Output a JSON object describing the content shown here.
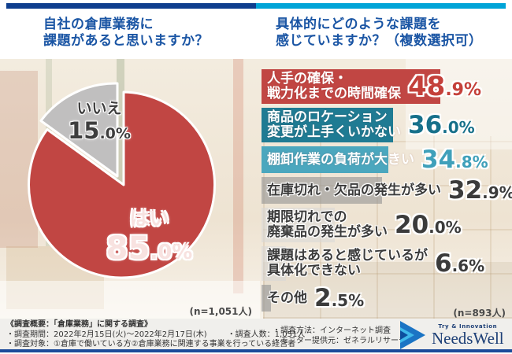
{
  "questions": {
    "left": [
      "自社の倉庫業務に",
      "課題があると思いますか？"
    ],
    "right": [
      "具体的にどのような課題を",
      "感じていますか？（複数選択可）"
    ]
  },
  "pie": {
    "slices": [
      {
        "label": "はい",
        "value": 85.0,
        "pct_int": "85",
        "pct_frac": ".0%",
        "color": "#c14643"
      },
      {
        "label": "いいえ",
        "value": 15.0,
        "pct_int": "15",
        "pct_frac": ".0%",
        "color": "#c0bfbf"
      }
    ],
    "n_label": "(n=1,051人)"
  },
  "bars": {
    "items": [
      {
        "label_lines": [
          "人手の確保・",
          "戦力化までの時間確保"
        ],
        "value": 48.9,
        "pct_int": "48",
        "pct_frac": ".9%",
        "color": "#c14643"
      },
      {
        "label_lines": [
          "商品のロケーション",
          "変更が上手くいかない"
        ],
        "value": 36.0,
        "pct_int": "36",
        "pct_frac": ".0%",
        "color": "#1f7b93"
      },
      {
        "label_lines": [
          "棚卸作業の負荷が大きい"
        ],
        "value": 34.8,
        "pct_int": "34",
        "pct_frac": ".8%",
        "color": "#4ba7be"
      },
      {
        "label_lines": [
          "在庫切れ・欠品の発生が多い"
        ],
        "value": 32.9,
        "pct_int": "32",
        "pct_frac": ".9%",
        "color": "#999999"
      },
      {
        "label_lines": [
          "期限切れでの",
          "廃棄品の発生が多い"
        ],
        "value": 20.0,
        "pct_int": "20",
        "pct_frac": ".0%",
        "color": "#d7d7d7"
      },
      {
        "label_lines": [
          "課題はあると感じているが",
          "具体化できない"
        ],
        "value": 6.6,
        "pct_int": "6",
        "pct_frac": ".6%",
        "color": "#d7d7d7"
      },
      {
        "label_lines": [
          "その他"
        ],
        "value": 2.5,
        "pct_int": "2",
        "pct_frac": ".5%",
        "color": "#999999"
      }
    ],
    "n_label": "(n=893人)"
  },
  "chart_data": [
    {
      "type": "pie",
      "title": "自社の倉庫業務に課題があると思いますか？",
      "labels": [
        "はい",
        "いいえ"
      ],
      "values": [
        85.0,
        15.0
      ],
      "colors": [
        "#c14643",
        "#c0bfbf"
      ],
      "sample_size": "n=1,051人",
      "start_angle": "12時方向から時計回り",
      "exploded_slice": "いいえ"
    },
    {
      "type": "bar",
      "orientation": "horizontal",
      "title": "具体的にどのような課題を感じていますか？（複数選択可）",
      "categories": [
        "人手の確保・戦力化までの時間確保",
        "商品のロケーション変更が上手くいかない",
        "棚卸作業の負荷が大きい",
        "在庫切れ・欠品の発生が多い",
        "期限切れでの廃棄品の発生が多い",
        "課題はあると感じているが具体化できない",
        "その他"
      ],
      "values": [
        48.9,
        36.0,
        34.8,
        32.9,
        20.0,
        6.6,
        2.5
      ],
      "unit": "%",
      "xlim": [
        0,
        50
      ],
      "sample_size": "n=893人",
      "bar_colors": [
        "#c14643",
        "#1f7b93",
        "#4ba7be",
        "#999999",
        "#d7d7d7",
        "#d7d7d7",
        "#999999"
      ]
    }
  ],
  "footer": {
    "summary_title": "《調査概要：「倉庫業務」に関する調査》",
    "period": "・調査期間：2022年2月15日(火)～2022年2月17日(木)",
    "people": "・調査人数：1,051人",
    "target": "・調査対象：①倉庫で働いている方②倉庫業務に関連する事業を行っている経営者",
    "method": "・調査方法：インターネット調査",
    "monitor": "・モニター提供元：ゼネラルリサーチ",
    "logo_tagline": "Try & Innovation",
    "logo_name": "NeedsWell"
  },
  "colors": {
    "accent_navy": "#0e3e8e",
    "accent_cyan": "#00a4d8",
    "title_blue": "#1a55a4",
    "pie_yes_red": "#c14643",
    "pie_no_gray": "#c0bfbf",
    "bar_red": "#c14643",
    "bar_teal_dark": "#1f7b93",
    "bar_teal_light": "#4ba7be",
    "text_dark": "#3b3b3b",
    "footer_line_navy": "#1c4b9a"
  }
}
